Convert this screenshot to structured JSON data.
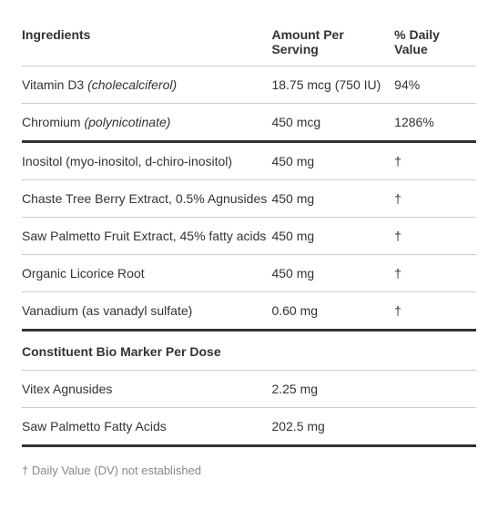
{
  "headers": {
    "ingredients": "Ingredients",
    "amount": "Amount Per Serving",
    "dv": "% Daily Value"
  },
  "rows": [
    {
      "name": "Vitamin D3 ",
      "qualifier": "(cholecalciferol)",
      "amount": "18.75 mcg (750 IU)",
      "dv": "94%"
    },
    {
      "name": "Chromium ",
      "qualifier": "(polynicotinate)",
      "amount": "450 mcg",
      "dv": "1286%"
    },
    {
      "name": "Inositol (myo-inositol, d-chiro-inositol)",
      "qualifier": "",
      "amount": "450 mg",
      "dv": "†"
    },
    {
      "name": "Chaste Tree Berry Extract, 0.5% Agnusides",
      "qualifier": "",
      "amount": "450 mg",
      "dv": "†"
    },
    {
      "name": "Saw Palmetto Fruit Extract, 45% fatty acids",
      "qualifier": "",
      "amount": "450 mg",
      "dv": "†"
    },
    {
      "name": "Organic Licorice Root",
      "qualifier": "",
      "amount": "450 mg",
      "dv": "†"
    },
    {
      "name": "Vanadium (as vanadyl sulfate)",
      "qualifier": "",
      "amount": "0.60 mg",
      "dv": "†"
    }
  ],
  "section2_header": "Constituent Bio Marker Per Dose",
  "section2_rows": [
    {
      "name": "Vitex Agnusides",
      "amount": "2.25 mg",
      "dv": ""
    },
    {
      "name": "Saw Palmetto Fatty Acids",
      "amount": "202.5 mg",
      "dv": ""
    }
  ],
  "footnote": "† Daily Value (DV) not established"
}
